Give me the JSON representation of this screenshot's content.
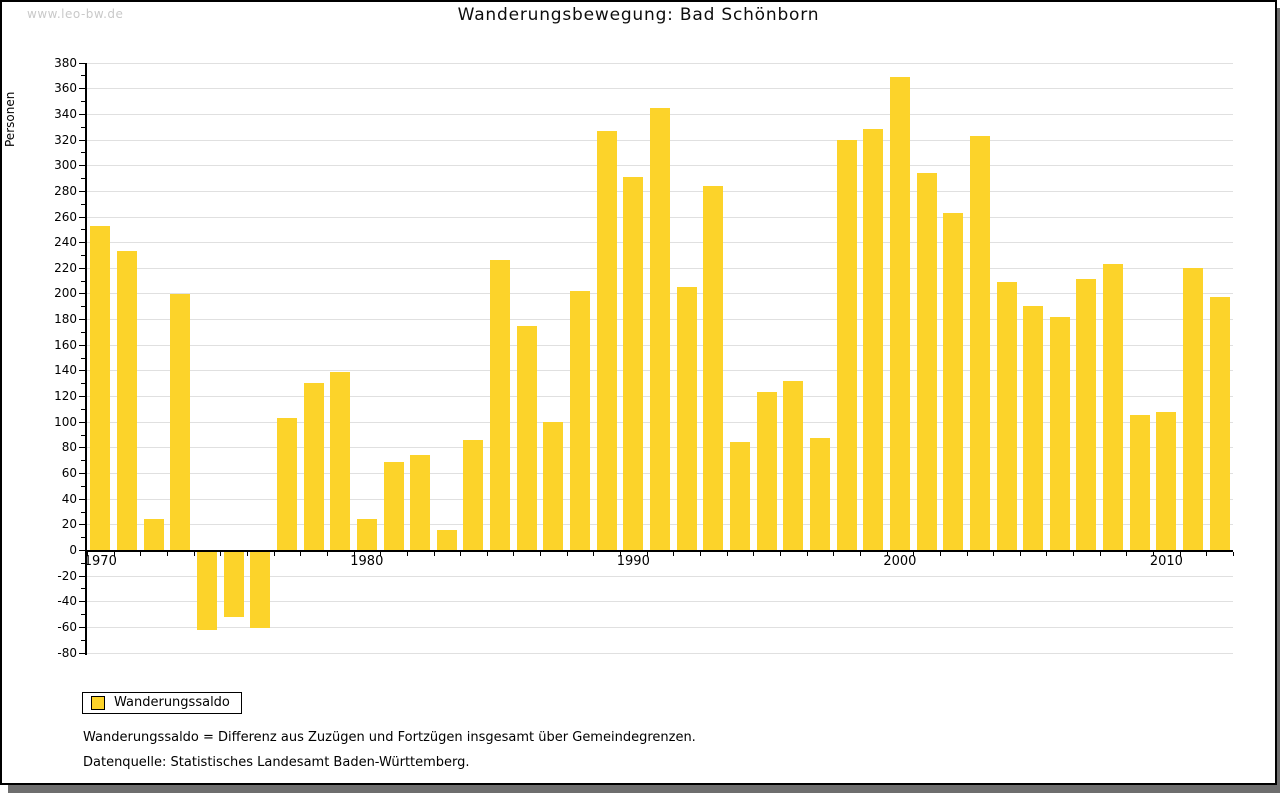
{
  "watermark": "www.leo-bw.de",
  "header": {
    "title": "Wanderungsbewegung: Bad Schönborn"
  },
  "legend": {
    "series_label": "Wanderungssaldo",
    "swatch_color": "#fcd32a"
  },
  "footnotes": {
    "definition": "Wanderungssaldo = Differenz aus Zuzügen und Fortzügen insgesamt über Gemeindegrenzen.",
    "source": "Datenquelle: Statistisches Landesamt Baden-Württemberg."
  },
  "chart_data": {
    "type": "bar",
    "title": "Wanderungsbewegung: Bad Schönborn",
    "xlabel": "",
    "ylabel": "Personen",
    "ylim": [
      -80,
      380
    ],
    "ytick_step": 20,
    "y_minor_step": 10,
    "grid": true,
    "legend_position": "bottom-left",
    "bar_color": "#fcd32a",
    "grid_color": "#e0e0e0",
    "axis_color": "#000000",
    "x_axis_labeled_years": [
      1970,
      1980,
      1990,
      2000,
      2010
    ],
    "categories": [
      1970,
      1971,
      1972,
      1973,
      1974,
      1975,
      1976,
      1977,
      1978,
      1979,
      1980,
      1981,
      1982,
      1983,
      1984,
      1985,
      1986,
      1987,
      1988,
      1989,
      1990,
      1991,
      1992,
      1993,
      1994,
      1995,
      1996,
      1997,
      1998,
      1999,
      2000,
      2001,
      2002,
      2003,
      2004,
      2005,
      2006,
      2007,
      2008,
      2009,
      2010,
      2011,
      2012
    ],
    "series": [
      {
        "name": "Wanderungssaldo",
        "values": [
          253,
          233,
          24,
          200,
          -62,
          -52,
          -61,
          103,
          130,
          139,
          24,
          69,
          74,
          16,
          86,
          226,
          175,
          100,
          202,
          327,
          291,
          345,
          205,
          284,
          84,
          123,
          132,
          87,
          320,
          328,
          369,
          294,
          263,
          323,
          209,
          190,
          182,
          211,
          223,
          105,
          108,
          220,
          197
        ]
      }
    ]
  }
}
